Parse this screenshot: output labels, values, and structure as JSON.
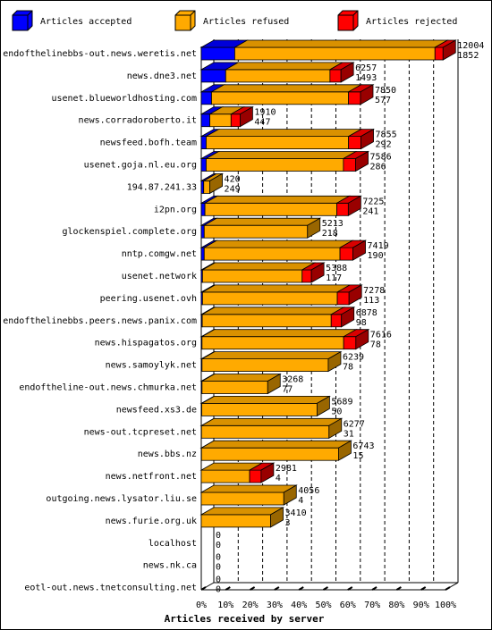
{
  "chart_data": {
    "type": "bar",
    "stacked": true,
    "orientation": "horizontal",
    "xlabel": "Articles received by server",
    "x_ticks": [
      "0%",
      "10%",
      "20%",
      "30%",
      "40%",
      "50%",
      "60%",
      "70%",
      "80%",
      "90%",
      "100%"
    ],
    "legend_position": "top",
    "series": [
      {
        "name": "Articles accepted",
        "color": "#0000ff"
      },
      {
        "name": "Articles refused",
        "color": "#ffaa00"
      },
      {
        "name": "Articles rejected",
        "color": "#ff0000"
      }
    ],
    "rows": [
      {
        "server": "endofthelinebbs-out.news.weretis.net",
        "accepted_pct": 13.7,
        "refused_pct": 82.0,
        "rejected_pct": 3.3,
        "total": "12004",
        "second": "1852"
      },
      {
        "server": "news.dne3.net",
        "accepted_pct": 10.0,
        "refused_pct": 42.7,
        "rejected_pct": 4.5,
        "total": "6257",
        "second": "1493"
      },
      {
        "server": "usenet.blueworldhosting.com",
        "accepted_pct": 4.2,
        "refused_pct": 56.1,
        "rejected_pct": 4.9,
        "total": "7850",
        "second": "577"
      },
      {
        "server": "news.corradoroberto.it",
        "accepted_pct": 3.5,
        "refused_pct": 8.7,
        "rejected_pct": 3.7,
        "total": "1910",
        "second": "447"
      },
      {
        "server": "newsfeed.bofh.team",
        "accepted_pct": 2.0,
        "refused_pct": 58.3,
        "rejected_pct": 5.1,
        "total": "7855",
        "second": "292"
      },
      {
        "server": "usenet.goja.nl.eu.org",
        "accepted_pct": 2.0,
        "refused_pct": 56.2,
        "rejected_pct": 5.0,
        "total": "7586",
        "second": "286"
      },
      {
        "server": "194.87.241.33",
        "accepted_pct": 1.0,
        "refused_pct": 2.5,
        "rejected_pct": 0.0,
        "total": "420",
        "second": "249"
      },
      {
        "server": "i2pn.org",
        "accepted_pct": 1.5,
        "refused_pct": 54.0,
        "rejected_pct": 4.7,
        "total": "7225",
        "second": "241"
      },
      {
        "server": "glockenspiel.complete.org",
        "accepted_pct": 1.2,
        "refused_pct": 42.3,
        "rejected_pct": 0.0,
        "total": "5213",
        "second": "218"
      },
      {
        "server": "nntp.comgw.net",
        "accepted_pct": 1.2,
        "refused_pct": 55.6,
        "rejected_pct": 5.3,
        "total": "7419",
        "second": "190"
      },
      {
        "server": "usenet.network",
        "accepted_pct": 0.5,
        "refused_pct": 40.8,
        "rejected_pct": 3.8,
        "total": "5388",
        "second": "117"
      },
      {
        "server": "peering.usenet.ovh",
        "accepted_pct": 0.5,
        "refused_pct": 55.2,
        "rejected_pct": 4.8,
        "total": "7278",
        "second": "113"
      },
      {
        "server": "endofthelinebbs.peers.news.panix.com",
        "accepted_pct": 0.4,
        "refused_pct": 52.8,
        "rejected_pct": 4.2,
        "total": "6878",
        "second": "98"
      },
      {
        "server": "news.hispagatos.org",
        "accepted_pct": 0.3,
        "refused_pct": 58.0,
        "rejected_pct": 5.0,
        "total": "7616",
        "second": "78"
      },
      {
        "server": "news.samoylyk.net",
        "accepted_pct": 0.3,
        "refused_pct": 51.7,
        "rejected_pct": 0.0,
        "total": "6239",
        "second": "78"
      },
      {
        "server": "endoftheline-out.news.chmurka.net",
        "accepted_pct": 0.3,
        "refused_pct": 26.9,
        "rejected_pct": 0.0,
        "total": "3268",
        "second": "77"
      },
      {
        "server": "newsfeed.xs3.de",
        "accepted_pct": 0.2,
        "refused_pct": 47.2,
        "rejected_pct": 0.0,
        "total": "5689",
        "second": "50"
      },
      {
        "server": "news-out.tcpreset.net",
        "accepted_pct": 0.1,
        "refused_pct": 52.2,
        "rejected_pct": 0.0,
        "total": "6277",
        "second": "31"
      },
      {
        "server": "news.bbs.nz",
        "accepted_pct": 0.1,
        "refused_pct": 56.1,
        "rejected_pct": 0.0,
        "total": "6743",
        "second": "15"
      },
      {
        "server": "news.netfront.net",
        "accepted_pct": 0.0,
        "refused_pct": 19.8,
        "rejected_pct": 4.7,
        "total": "2981",
        "second": "4"
      },
      {
        "server": "outgoing.news.lysator.liu.se",
        "accepted_pct": 0.0,
        "refused_pct": 33.8,
        "rejected_pct": 0.0,
        "total": "4056",
        "second": "4"
      },
      {
        "server": "news.furie.org.uk",
        "accepted_pct": 0.0,
        "refused_pct": 28.4,
        "rejected_pct": 0.0,
        "total": "3410",
        "second": "3"
      },
      {
        "server": "localhost",
        "accepted_pct": 0,
        "refused_pct": 0,
        "rejected_pct": 0,
        "total": "0",
        "second": "0"
      },
      {
        "server": "news.nk.ca",
        "accepted_pct": 0,
        "refused_pct": 0,
        "rejected_pct": 0,
        "total": "0",
        "second": "0"
      },
      {
        "server": "eotl-out.news.tnetconsulting.net",
        "accepted_pct": 0,
        "refused_pct": 0,
        "rejected_pct": 0,
        "total": "0",
        "second": "0"
      }
    ]
  }
}
